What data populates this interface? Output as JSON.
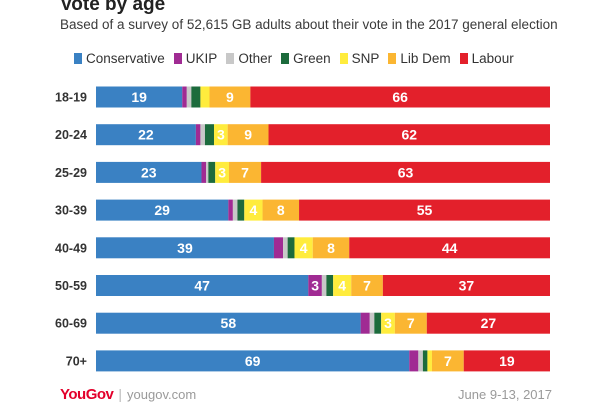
{
  "chart_data": {
    "type": "bar",
    "orientation": "horizontal",
    "stacked": true,
    "title": "Vote by age",
    "subtitle": "Based of a survey of 52,615 GB adults about their vote in the 2017 general election",
    "categories": [
      "18-19",
      "20-24",
      "25-29",
      "30-39",
      "40-49",
      "50-59",
      "60-69",
      "70+"
    ],
    "series": [
      {
        "name": "Conservative",
        "color": "#3a81c3",
        "values": [
          19,
          22,
          23,
          29,
          39,
          47,
          58,
          69
        ]
      },
      {
        "name": "UKIP",
        "color": "#a02b93",
        "values": [
          1,
          1,
          1,
          1,
          2,
          3,
          2,
          2
        ]
      },
      {
        "name": "Other",
        "color": "#c8c8c8",
        "values": [
          1,
          1,
          0.5,
          1,
          1,
          1,
          1,
          1
        ]
      },
      {
        "name": "Green",
        "color": "#1c6b3c",
        "values": [
          2,
          2,
          1.5,
          1.5,
          1.5,
          1.5,
          1.5,
          1
        ]
      },
      {
        "name": "SNP",
        "color": "#ffec3d",
        "values": [
          2,
          3,
          3,
          4,
          4,
          4,
          3,
          1
        ]
      },
      {
        "name": "Lib Dem",
        "color": "#fbb632",
        "values": [
          9,
          9,
          7,
          8,
          8,
          7,
          7,
          7
        ]
      },
      {
        "name": "Labour",
        "color": "#e3202b",
        "values": [
          66,
          62,
          63,
          55,
          44,
          37,
          27,
          19
        ]
      }
    ],
    "data_labels": [
      [
        "19",
        "",
        "",
        "",
        "",
        "9",
        "66"
      ],
      [
        "22",
        "",
        "",
        "",
        "3",
        "9",
        "62"
      ],
      [
        "23",
        "",
        "",
        "",
        "3",
        "7",
        "63"
      ],
      [
        "29",
        "",
        "",
        "",
        "4",
        "8",
        "55"
      ],
      [
        "39",
        "",
        "",
        "",
        "4",
        "8",
        "44"
      ],
      [
        "47",
        "3",
        "",
        "",
        "4",
        "7",
        "37"
      ],
      [
        "58",
        "",
        "",
        "",
        "3",
        "7",
        "27"
      ],
      [
        "69",
        "",
        "",
        "",
        "",
        "7",
        "19"
      ]
    ],
    "xlim": [
      0,
      100
    ],
    "grid": false,
    "legend_position": "top"
  },
  "footer": {
    "logo_you": "You",
    "logo_gov": "Gov",
    "separator": "|",
    "site": "yougov.com",
    "date": "June 9-13, 2017"
  }
}
